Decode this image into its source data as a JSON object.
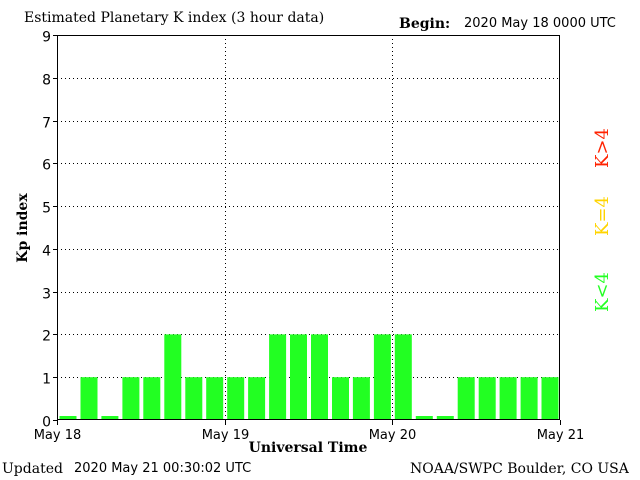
{
  "header": {
    "title": "Estimated Planetary K index (3 hour data)",
    "begin_label": "Begin:",
    "begin_value": "2020 May 18 0000 UTC"
  },
  "footer": {
    "updated_label": "Updated",
    "updated_value": "2020 May 21 00:30:02 UTC",
    "source": "NOAA/SWPC Boulder, CO USA"
  },
  "legend": {
    "high": "K>4",
    "equal": "K=4",
    "low": "K<4"
  },
  "colors": {
    "low": "#22ff22",
    "equal": "#ffd400",
    "high": "#ff2200",
    "frame": "#000000"
  },
  "chart_data": {
    "type": "bar",
    "xlabel": "Universal Time",
    "ylabel": "Kp index",
    "ylim": [
      0,
      9
    ],
    "yticks": [
      0,
      1,
      2,
      3,
      4,
      5,
      6,
      7,
      8,
      9
    ],
    "x_ticks": [
      "May 18",
      "May 19",
      "May 20",
      "May 21"
    ],
    "values": [
      0,
      1,
      0,
      1,
      1,
      2,
      1,
      1,
      1,
      1,
      2,
      2,
      2,
      1,
      1,
      2,
      2,
      0,
      0,
      1,
      1,
      1,
      1,
      1
    ],
    "bars_per_day": 8,
    "grid": "dotted"
  }
}
